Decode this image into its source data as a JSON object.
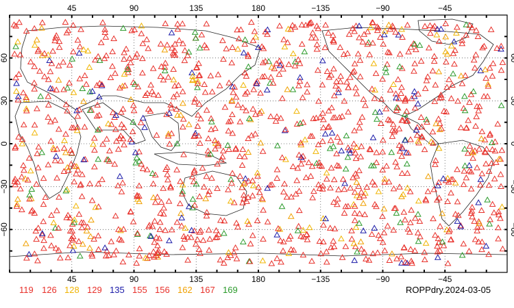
{
  "map": {
    "top_lon_labels": [
      "45",
      "90",
      "135",
      "180",
      "−135",
      "−90",
      "−45"
    ],
    "bottom_lon_labels": [
      "45",
      "90",
      "135",
      "180",
      "−135",
      "−90",
      "−45"
    ],
    "lat_labels": [
      "60",
      "30",
      "0",
      "−30",
      "−60"
    ],
    "lon_values": [
      45,
      90,
      135,
      180,
      -135,
      -90,
      -45
    ],
    "lat_values": [
      60,
      30,
      0,
      -30,
      -60
    ],
    "gridlines": "dotted",
    "marker": "open-triangle"
  },
  "legend": {
    "items": [
      {
        "label": "119",
        "color": "#e8302a"
      },
      {
        "label": "126",
        "color": "#e8302a"
      },
      {
        "label": "128",
        "color": "#f0b400"
      },
      {
        "label": "129",
        "color": "#e8302a"
      },
      {
        "label": "135",
        "color": "#1a1aa8"
      },
      {
        "label": "155",
        "color": "#e8302a"
      },
      {
        "label": "156",
        "color": "#e8302a"
      },
      {
        "label": "162",
        "color": "#f0a000"
      },
      {
        "label": "167",
        "color": "#e8302a"
      },
      {
        "label": "169",
        "color": "#2a9a2a"
      }
    ]
  },
  "caption": "ROPPdry.2024-03-05"
}
